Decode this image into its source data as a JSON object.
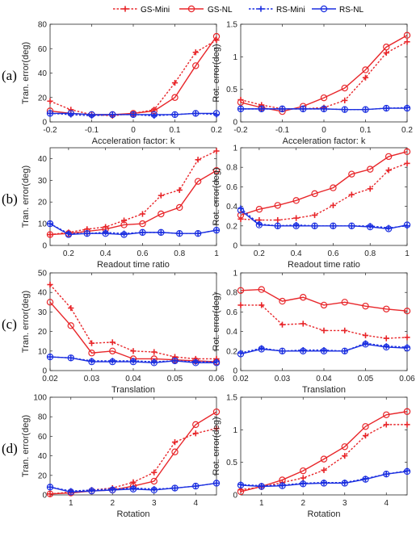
{
  "legend": {
    "entries": [
      {
        "name": "GS-Mini",
        "color": "#e8262a",
        "dash": "dotted",
        "marker": "plus"
      },
      {
        "name": "GS-NL",
        "color": "#e8262a",
        "dash": "solid",
        "marker": "circle"
      },
      {
        "name": "RS-Mini",
        "color": "#1b2fe0",
        "dash": "dotted",
        "marker": "plus"
      },
      {
        "name": "RS-NL",
        "color": "#1b2fe0",
        "dash": "solid",
        "marker": "circle"
      }
    ]
  },
  "row_labels": [
    "(a)",
    "(b)",
    "(c)",
    "(d)"
  ],
  "chart_data": [
    {
      "type": "line",
      "row": 0,
      "col": 0,
      "xlabel": "Acceleration factor: k",
      "ylabel": "Tran. error(deg)",
      "xlim": [
        -0.2,
        0.2
      ],
      "ylim": [
        0,
        80
      ],
      "xticks": [
        -0.2,
        -0.1,
        0,
        0.1,
        0.2
      ],
      "xticklabels": [
        "-0.2",
        "-0.1",
        "0",
        "0.1",
        "0.2"
      ],
      "yticks": [
        0,
        20,
        40,
        60,
        80
      ],
      "yticklabels": [
        "0",
        "20",
        "40",
        "60",
        "80"
      ],
      "x": [
        -0.2,
        -0.15,
        -0.1,
        -0.05,
        0,
        0.05,
        0.1,
        0.15,
        0.2
      ],
      "series": [
        {
          "name": "GS-Mini",
          "values": [
            17,
            10,
            6,
            5,
            7,
            10,
            32,
            57,
            67
          ]
        },
        {
          "name": "GS-NL",
          "values": [
            9,
            7,
            6,
            6,
            7,
            9,
            20,
            46,
            70
          ]
        },
        {
          "name": "RS-Mini",
          "values": [
            7,
            6,
            5,
            6,
            6,
            5,
            6,
            7,
            6
          ]
        },
        {
          "name": "RS-NL",
          "values": [
            7,
            7,
            6,
            6,
            6,
            6,
            6,
            7,
            7
          ]
        }
      ]
    },
    {
      "type": "line",
      "row": 0,
      "col": 1,
      "xlabel": "Acceleration factor: k",
      "ylabel": "Rot. error(deg)",
      "xlim": [
        -0.2,
        0.2
      ],
      "ylim": [
        0,
        1.5
      ],
      "xticks": [
        -0.2,
        -0.1,
        0,
        0.1,
        0.2
      ],
      "xticklabels": [
        "-0.2",
        "-0.1",
        "0",
        "0.1",
        "0.2"
      ],
      "yticks": [
        0,
        0.5,
        1,
        1.5
      ],
      "yticklabels": [
        "0",
        "0.5",
        "1",
        "1.5"
      ],
      "x": [
        -0.2,
        -0.15,
        -0.1,
        -0.05,
        0,
        0.05,
        0.1,
        0.15,
        0.2
      ],
      "series": [
        {
          "name": "GS-Mini",
          "values": [
            0.34,
            0.26,
            0.2,
            0.2,
            0.22,
            0.33,
            0.68,
            1.06,
            1.23
          ]
        },
        {
          "name": "GS-NL",
          "values": [
            0.3,
            0.22,
            0.16,
            0.24,
            0.37,
            0.52,
            0.8,
            1.15,
            1.33
          ]
        },
        {
          "name": "RS-Mini",
          "values": [
            0.2,
            0.2,
            0.2,
            0.2,
            0.2,
            0.19,
            0.19,
            0.21,
            0.22
          ]
        },
        {
          "name": "RS-NL",
          "values": [
            0.2,
            0.2,
            0.2,
            0.2,
            0.2,
            0.19,
            0.19,
            0.21,
            0.21
          ]
        }
      ]
    },
    {
      "type": "line",
      "row": 1,
      "col": 0,
      "xlabel": "Readout time ratio",
      "ylabel": "Tran. error(deg)",
      "xlim": [
        0.1,
        1
      ],
      "ylim": [
        0,
        45
      ],
      "xticks": [
        0.2,
        0.4,
        0.6,
        0.8,
        1
      ],
      "xticklabels": [
        "0.2",
        "0.4",
        "0.6",
        "0.8",
        "1"
      ],
      "yticks": [
        0,
        10,
        20,
        30,
        40
      ],
      "yticklabels": [
        "0",
        "10",
        "20",
        "30",
        "40"
      ],
      "x": [
        0.1,
        0.2,
        0.3,
        0.4,
        0.5,
        0.6,
        0.7,
        0.8,
        0.9,
        1
      ],
      "series": [
        {
          "name": "GS-Mini",
          "values": [
            5,
            6,
            7.5,
            8.5,
            11.5,
            14.5,
            23,
            25.5,
            39.5,
            43.5
          ]
        },
        {
          "name": "GS-NL",
          "values": [
            5,
            5.5,
            6.5,
            7.5,
            9.5,
            10,
            14.5,
            17.5,
            29.5,
            34.5
          ]
        },
        {
          "name": "RS-Mini",
          "values": [
            10,
            5.5,
            5.5,
            6,
            5.5,
            6,
            6,
            5.5,
            5.5,
            7
          ]
        },
        {
          "name": "RS-NL",
          "values": [
            10,
            5,
            5.5,
            5.5,
            5,
            6,
            6,
            5.5,
            5.5,
            7
          ]
        }
      ]
    },
    {
      "type": "line",
      "row": 1,
      "col": 1,
      "xlabel": "Readout time ratio",
      "ylabel": "Rot. error(deg)",
      "xlim": [
        0.1,
        1
      ],
      "ylim": [
        0,
        1
      ],
      "xticks": [
        0.2,
        0.4,
        0.6,
        0.8,
        1
      ],
      "xticklabels": [
        "0.2",
        "0.4",
        "0.6",
        "0.8",
        "1"
      ],
      "yticks": [
        0,
        0.2,
        0.4,
        0.6,
        0.8,
        1
      ],
      "yticklabels": [
        "0",
        "0.2",
        "0.4",
        "0.6",
        "0.8",
        "1"
      ],
      "x": [
        0.1,
        0.2,
        0.3,
        0.4,
        0.5,
        0.6,
        0.7,
        0.8,
        0.9,
        1
      ],
      "series": [
        {
          "name": "GS-Mini",
          "values": [
            0.27,
            0.26,
            0.26,
            0.28,
            0.31,
            0.41,
            0.52,
            0.58,
            0.77,
            0.84
          ]
        },
        {
          "name": "GS-NL",
          "values": [
            0.31,
            0.37,
            0.41,
            0.46,
            0.53,
            0.59,
            0.73,
            0.78,
            0.91,
            0.96
          ]
        },
        {
          "name": "RS-Mini",
          "values": [
            0.38,
            0.22,
            0.2,
            0.21,
            0.2,
            0.2,
            0.2,
            0.2,
            0.18,
            0.2
          ]
        },
        {
          "name": "RS-NL",
          "values": [
            0.36,
            0.21,
            0.2,
            0.2,
            0.2,
            0.2,
            0.2,
            0.19,
            0.17,
            0.21
          ]
        }
      ]
    },
    {
      "type": "line",
      "row": 2,
      "col": 0,
      "xlabel": "Translation",
      "ylabel": "Tran. error(deg)",
      "xlim": [
        0.02,
        0.06
      ],
      "ylim": [
        0,
        50
      ],
      "xticks": [
        0.02,
        0.03,
        0.04,
        0.05,
        0.06
      ],
      "xticklabels": [
        "0.02",
        "0.03",
        "0.04",
        "0.05",
        "0.06"
      ],
      "yticks": [
        0,
        10,
        20,
        30,
        40,
        50
      ],
      "yticklabels": [
        "0",
        "10",
        "20",
        "30",
        "40",
        "50"
      ],
      "x": [
        0.02,
        0.025,
        0.03,
        0.035,
        0.04,
        0.045,
        0.05,
        0.055,
        0.06
      ],
      "series": [
        {
          "name": "GS-Mini",
          "values": [
            44,
            32,
            14,
            14.5,
            10,
            9.5,
            7,
            6,
            6
          ]
        },
        {
          "name": "GS-NL",
          "values": [
            35,
            23,
            9,
            10,
            6,
            6,
            5.5,
            5,
            4.5
          ]
        },
        {
          "name": "RS-Mini",
          "values": [
            7,
            6.5,
            5,
            5,
            5,
            4.5,
            5,
            4.5,
            4.5
          ]
        },
        {
          "name": "RS-NL",
          "values": [
            7,
            6.5,
            4.5,
            4.5,
            4.5,
            4,
            5,
            4,
            4
          ]
        }
      ]
    },
    {
      "type": "line",
      "row": 2,
      "col": 1,
      "xlabel": "Translation",
      "ylabel": "Rot. error(deg)",
      "xlim": [
        0.02,
        0.06
      ],
      "ylim": [
        0,
        1
      ],
      "xticks": [
        0.02,
        0.03,
        0.04,
        0.05,
        0.06
      ],
      "xticklabels": [
        "0.02",
        "0.03",
        "0.04",
        "0.05",
        "0.06"
      ],
      "yticks": [
        0,
        0.2,
        0.4,
        0.6,
        0.8,
        1
      ],
      "yticklabels": [
        "0",
        "0.2",
        "0.4",
        "0.6",
        "0.8",
        "1"
      ],
      "x": [
        0.02,
        0.025,
        0.03,
        0.035,
        0.04,
        0.045,
        0.05,
        0.055,
        0.06
      ],
      "series": [
        {
          "name": "GS-Mini",
          "values": [
            0.67,
            0.67,
            0.47,
            0.48,
            0.41,
            0.41,
            0.36,
            0.33,
            0.34
          ]
        },
        {
          "name": "GS-NL",
          "values": [
            0.82,
            0.83,
            0.71,
            0.75,
            0.67,
            0.7,
            0.66,
            0.63,
            0.61
          ]
        },
        {
          "name": "RS-Mini",
          "values": [
            0.18,
            0.23,
            0.2,
            0.21,
            0.21,
            0.2,
            0.28,
            0.25,
            0.24
          ]
        },
        {
          "name": "RS-NL",
          "values": [
            0.17,
            0.22,
            0.2,
            0.2,
            0.2,
            0.2,
            0.27,
            0.24,
            0.23
          ]
        }
      ]
    },
    {
      "type": "line",
      "row": 3,
      "col": 0,
      "xlabel": "Rotation",
      "ylabel": "Tran. error(deg)",
      "xlim": [
        0.5,
        4.5
      ],
      "ylim": [
        0,
        100
      ],
      "xticks": [
        1,
        2,
        3,
        4
      ],
      "xticklabels": [
        "1",
        "2",
        "3",
        "4"
      ],
      "yticks": [
        0,
        20,
        40,
        60,
        80,
        100
      ],
      "yticklabels": [
        "0",
        "20",
        "40",
        "60",
        "80",
        "100"
      ],
      "x": [
        0.5,
        1,
        1.5,
        2,
        2.5,
        3,
        3.5,
        4,
        4.5
      ],
      "series": [
        {
          "name": "GS-Mini",
          "values": [
            1,
            3,
            5,
            7,
            13,
            23,
            54,
            63,
            68
          ]
        },
        {
          "name": "GS-NL",
          "values": [
            1,
            2,
            4,
            5,
            9,
            14,
            44,
            72,
            85
          ]
        },
        {
          "name": "RS-Mini",
          "values": [
            8,
            4,
            5,
            6,
            7,
            6,
            7,
            9,
            12
          ]
        },
        {
          "name": "RS-NL",
          "values": [
            8,
            3,
            4,
            5,
            6,
            5,
            7,
            9,
            12
          ]
        }
      ]
    },
    {
      "type": "line",
      "row": 3,
      "col": 1,
      "xlabel": "Rotation",
      "ylabel": "Rot. error(deg)",
      "xlim": [
        0.5,
        4.5
      ],
      "ylim": [
        0,
        1.5
      ],
      "xticks": [
        1,
        2,
        3,
        4
      ],
      "xticklabels": [
        "1",
        "2",
        "3",
        "4"
      ],
      "yticks": [
        0,
        0.5,
        1,
        1.5
      ],
      "yticklabels": [
        "0",
        "0.5",
        "1",
        "1.5"
      ],
      "x": [
        0.5,
        1,
        1.5,
        2,
        2.5,
        3,
        3.5,
        4,
        4.5
      ],
      "series": [
        {
          "name": "GS-Mini",
          "values": [
            0.08,
            0.12,
            0.19,
            0.26,
            0.38,
            0.6,
            0.91,
            1.08,
            1.08
          ]
        },
        {
          "name": "GS-NL",
          "values": [
            0.05,
            0.13,
            0.23,
            0.37,
            0.55,
            0.74,
            1.05,
            1.23,
            1.28
          ]
        },
        {
          "name": "RS-Mini",
          "values": [
            0.16,
            0.14,
            0.15,
            0.18,
            0.19,
            0.19,
            0.25,
            0.32,
            0.37
          ]
        },
        {
          "name": "RS-NL",
          "values": [
            0.15,
            0.13,
            0.14,
            0.17,
            0.18,
            0.18,
            0.24,
            0.32,
            0.36
          ]
        }
      ]
    }
  ]
}
